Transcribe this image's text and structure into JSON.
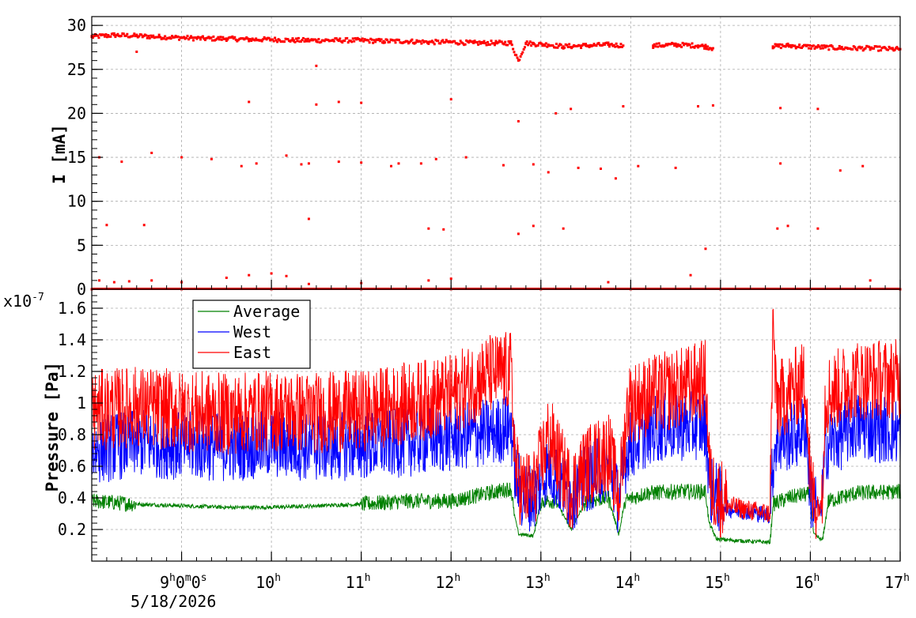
{
  "chart_data": [
    {
      "type": "scatter",
      "ylabel": "I [mA]",
      "ylim": [
        0,
        31
      ],
      "yticks": [
        "0",
        "5",
        "10",
        "15",
        "20",
        "25",
        "30"
      ],
      "xlim": [
        "8:00",
        "17:00"
      ],
      "grid": true,
      "series": [
        {
          "color": "#ff0000",
          "points": [
            [
              "8:00",
              28.7
            ],
            [
              "8:15",
              28.9
            ],
            [
              "8:30",
              28.8
            ],
            [
              "8:45",
              28.7
            ],
            [
              "9:00",
              28.6
            ],
            [
              "9:15",
              28.5
            ],
            [
              "9:30",
              28.5
            ],
            [
              "9:45",
              28.4
            ],
            [
              "10:00",
              28.4
            ],
            [
              "10:15",
              28.3
            ],
            [
              "10:30",
              28.3
            ],
            [
              "10:45",
              28.3
            ],
            [
              "11:00",
              28.3
            ],
            [
              "11:15",
              28.2
            ],
            [
              "11:30",
              28.2
            ],
            [
              "11:45",
              28.1
            ],
            [
              "12:00",
              28.1
            ],
            [
              "12:15",
              28.0
            ],
            [
              "12:30",
              28.0
            ],
            [
              "12:40",
              28.0
            ],
            [
              "12:45",
              26.0
            ],
            [
              "12:50",
              28.0
            ],
            [
              "12:55",
              27.9
            ],
            [
              "13:05",
              27.8
            ],
            [
              "13:15",
              27.6
            ],
            [
              "13:30",
              27.7
            ],
            [
              "13:45",
              27.8
            ],
            [
              "13:55",
              27.7
            ],
            [
              "14:15",
              27.7
            ],
            [
              "14:30",
              27.8
            ],
            [
              "14:45",
              27.7
            ],
            [
              "14:50",
              27.6
            ],
            [
              "14:55",
              27.4
            ],
            [
              "15:35",
              27.6
            ],
            [
              "15:45",
              27.7
            ],
            [
              "15:55",
              27.6
            ],
            [
              "16:10",
              27.5
            ],
            [
              "16:25",
              27.4
            ],
            [
              "16:40",
              27.4
            ],
            [
              "16:55",
              27.3
            ],
            [
              "17:00",
              27.3
            ],
            [
              "8:30",
              27.0
            ],
            [
              "10:30",
              25.4
            ],
            [
              "10:30",
              21.0
            ],
            [
              "10:45",
              21.3
            ],
            [
              "11:00",
              21.2
            ],
            [
              "9:45",
              21.3
            ],
            [
              "12:00",
              21.6
            ],
            [
              "12:45",
              19.1
            ],
            [
              "13:10",
              20.0
            ],
            [
              "13:20",
              20.5
            ],
            [
              "13:55",
              20.8
            ],
            [
              "14:45",
              20.8
            ],
            [
              "14:55",
              20.9
            ],
            [
              "15:40",
              20.6
            ],
            [
              "16:05",
              20.5
            ],
            [
              "8:05",
              15.0
            ],
            [
              "8:20",
              14.5
            ],
            [
              "8:40",
              15.5
            ],
            [
              "9:00",
              15.0
            ],
            [
              "9:20",
              14.8
            ],
            [
              "9:50",
              14.3
            ],
            [
              "10:10",
              15.2
            ],
            [
              "10:25",
              14.3
            ],
            [
              "10:45",
              14.5
            ],
            [
              "11:00",
              14.4
            ],
            [
              "11:20",
              14.0
            ],
            [
              "11:40",
              14.3
            ],
            [
              "11:50",
              14.8
            ],
            [
              "12:10",
              15.0
            ],
            [
              "12:55",
              14.2
            ],
            [
              "13:05",
              13.3
            ],
            [
              "13:40",
              13.7
            ],
            [
              "13:50",
              12.6
            ],
            [
              "14:05",
              14.0
            ],
            [
              "14:30",
              13.8
            ],
            [
              "15:40",
              14.3
            ],
            [
              "16:20",
              13.5
            ],
            [
              "16:35",
              14.0
            ],
            [
              "9:40",
              14.0
            ],
            [
              "10:20",
              14.2
            ],
            [
              "11:25",
              14.3
            ],
            [
              "12:35",
              14.1
            ],
            [
              "13:25",
              13.8
            ],
            [
              "8:10",
              7.3
            ],
            [
              "8:35",
              7.3
            ],
            [
              "10:25",
              8.0
            ],
            [
              "11:45",
              6.9
            ],
            [
              "11:55",
              6.8
            ],
            [
              "12:45",
              6.3
            ],
            [
              "12:55",
              7.2
            ],
            [
              "13:15",
              6.9
            ],
            [
              "15:38",
              6.9
            ],
            [
              "15:45",
              7.2
            ],
            [
              "16:05",
              6.9
            ],
            [
              "14:50",
              4.6
            ],
            [
              "8:05",
              1.0
            ],
            [
              "8:15",
              0.8
            ],
            [
              "8:25",
              0.9
            ],
            [
              "8:40",
              1.0
            ],
            [
              "9:00",
              0.8
            ],
            [
              "9:30",
              1.3
            ],
            [
              "9:45",
              1.6
            ],
            [
              "10:00",
              1.8
            ],
            [
              "10:10",
              1.5
            ],
            [
              "10:25",
              0.6
            ],
            [
              "11:00",
              0.7
            ],
            [
              "11:45",
              1.0
            ],
            [
              "12:00",
              1.2
            ],
            [
              "13:45",
              0.8
            ],
            [
              "14:40",
              1.6
            ],
            [
              "16:40",
              1.0
            ],
            [
              "8:00",
              0.0
            ],
            [
              "9:00",
              0.0
            ],
            [
              "10:00",
              0.0
            ],
            [
              "11:00",
              0.0
            ],
            [
              "12:00",
              0.0
            ],
            [
              "13:00",
              0.0
            ],
            [
              "14:00",
              0.0
            ],
            [
              "15:00",
              0.0
            ],
            [
              "16:00",
              0.0
            ],
            [
              "17:00",
              0.0
            ]
          ]
        }
      ]
    },
    {
      "type": "line",
      "ylabel": "Pressure [Pa]",
      "y_exponent": "x10",
      "y_exponent_power": "-7",
      "ylim": [
        0.0,
        1.72
      ],
      "yticks": [
        "0.2",
        "0.4",
        "0.6",
        "0.8",
        "1",
        "1.2",
        "1.4",
        "1.6"
      ],
      "xlim": [
        "8:00",
        "17:00"
      ],
      "xticks": [
        "9:00",
        "10:00",
        "11:00",
        "12:00",
        "13:00",
        "14:00",
        "15:00",
        "16:00",
        "17:00"
      ],
      "first_tick_label": {
        "hours": "9",
        "minutes": "0",
        "seconds": "0",
        "date": "5/18/2026"
      },
      "hour_labels": [
        "10",
        "11",
        "12",
        "13",
        "14",
        "15",
        "16",
        "17"
      ],
      "hour_suffix": "h",
      "minute_suffix": "m",
      "second_suffix": "s",
      "grid": true,
      "legend_position": "top-left",
      "series": [
        {
          "name": "Average",
          "color": "#008000",
          "noise": 0.05,
          "points": [
            [
              "8:00",
              0.38
            ],
            [
              "8:30",
              0.36
            ],
            [
              "9:00",
              0.35
            ],
            [
              "9:30",
              0.34
            ],
            [
              "10:00",
              0.34
            ],
            [
              "10:30",
              0.35
            ],
            [
              "11:00",
              0.36
            ],
            [
              "11:30",
              0.38
            ],
            [
              "12:00",
              0.38
            ],
            [
              "12:30",
              0.44
            ],
            [
              "12:40",
              0.46
            ],
            [
              "12:42",
              0.3
            ],
            [
              "12:45",
              0.17
            ],
            [
              "12:55",
              0.16
            ],
            [
              "13:00",
              0.38
            ],
            [
              "13:10",
              0.38
            ],
            [
              "13:20",
              0.2
            ],
            [
              "13:30",
              0.38
            ],
            [
              "13:45",
              0.4
            ],
            [
              "13:52",
              0.17
            ],
            [
              "13:56",
              0.38
            ],
            [
              "14:10",
              0.43
            ],
            [
              "14:30",
              0.44
            ],
            [
              "14:50",
              0.44
            ],
            [
              "14:52",
              0.25
            ],
            [
              "14:57",
              0.14
            ],
            [
              "15:10",
              0.13
            ],
            [
              "15:30",
              0.12
            ],
            [
              "15:33",
              0.12
            ],
            [
              "15:35",
              0.36
            ],
            [
              "15:45",
              0.4
            ],
            [
              "15:55",
              0.42
            ],
            [
              "16:00",
              0.42
            ],
            [
              "16:02",
              0.17
            ],
            [
              "16:08",
              0.13
            ],
            [
              "16:12",
              0.38
            ],
            [
              "16:30",
              0.43
            ],
            [
              "17:00",
              0.44
            ]
          ]
        },
        {
          "name": "West",
          "color": "#0000ff",
          "noise": 0.22,
          "points": [
            [
              "8:00",
              0.7
            ],
            [
              "8:30",
              0.75
            ],
            [
              "9:00",
              0.73
            ],
            [
              "9:30",
              0.72
            ],
            [
              "10:00",
              0.74
            ],
            [
              "10:30",
              0.72
            ],
            [
              "11:00",
              0.73
            ],
            [
              "11:30",
              0.75
            ],
            [
              "12:00",
              0.78
            ],
            [
              "12:30",
              0.82
            ],
            [
              "12:40",
              0.86
            ],
            [
              "12:43",
              0.55
            ],
            [
              "12:47",
              0.42
            ],
            [
              "12:55",
              0.4
            ],
            [
              "13:05",
              0.6
            ],
            [
              "13:20",
              0.4
            ],
            [
              "13:30",
              0.52
            ],
            [
              "13:45",
              0.6
            ],
            [
              "13:52",
              0.38
            ],
            [
              "13:58",
              0.72
            ],
            [
              "14:15",
              0.84
            ],
            [
              "14:35",
              0.85
            ],
            [
              "14:50",
              0.86
            ],
            [
              "14:53",
              0.45
            ],
            [
              "15:05",
              0.33
            ],
            [
              "15:20",
              0.31
            ],
            [
              "15:33",
              0.29
            ],
            [
              "15:36",
              0.75
            ],
            [
              "15:50",
              0.8
            ],
            [
              "15:57",
              0.85
            ],
            [
              "16:00",
              0.42
            ],
            [
              "16:07",
              0.31
            ],
            [
              "16:10",
              0.72
            ],
            [
              "16:30",
              0.86
            ],
            [
              "17:00",
              0.82
            ]
          ]
        },
        {
          "name": "East",
          "color": "#ff0000",
          "noise": 0.26,
          "points": [
            [
              "8:00",
              0.95
            ],
            [
              "8:30",
              0.98
            ],
            [
              "9:00",
              0.95
            ],
            [
              "9:30",
              0.93
            ],
            [
              "10:00",
              0.95
            ],
            [
              "10:30",
              0.94
            ],
            [
              "11:00",
              0.95
            ],
            [
              "11:30",
              1.0
            ],
            [
              "12:00",
              1.05
            ],
            [
              "12:25",
              1.18
            ],
            [
              "12:40",
              1.2
            ],
            [
              "12:43",
              0.58
            ],
            [
              "12:47",
              0.45
            ],
            [
              "12:55",
              0.45
            ],
            [
              "13:05",
              0.8
            ],
            [
              "13:20",
              0.45
            ],
            [
              "13:30",
              0.6
            ],
            [
              "13:45",
              0.7
            ],
            [
              "13:52",
              0.4
            ],
            [
              "13:58",
              1.0
            ],
            [
              "14:15",
              1.05
            ],
            [
              "14:35",
              1.1
            ],
            [
              "14:50",
              1.15
            ],
            [
              "14:53",
              0.48
            ],
            [
              "15:05",
              0.35
            ],
            [
              "15:20",
              0.32
            ],
            [
              "15:33",
              0.3
            ],
            [
              "15:35",
              1.55
            ],
            [
              "15:37",
              1.0
            ],
            [
              "15:50",
              1.1
            ],
            [
              "15:57",
              1.15
            ],
            [
              "16:00",
              0.45
            ],
            [
              "16:07",
              0.32
            ],
            [
              "16:10",
              1.05
            ],
            [
              "16:30",
              1.15
            ],
            [
              "17:00",
              1.15
            ]
          ]
        }
      ]
    }
  ]
}
